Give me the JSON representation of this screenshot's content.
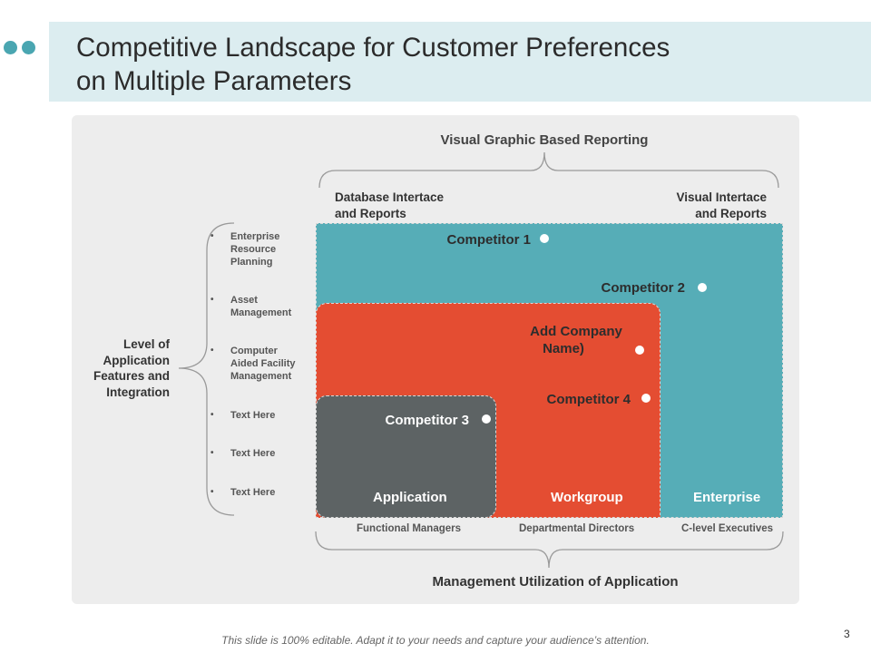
{
  "slide": {
    "title_lines": [
      "Competitive Landscape for Customer Preferences",
      "on Multiple Parameters"
    ],
    "footer_note": "This slide is 100% editable. Adapt it to your needs and capture your audience’s attention.",
    "page_number": "3",
    "colors": {
      "title_bar": "#dcedf0",
      "accent_dots": "#4aa6b1",
      "panel": "#ededed",
      "enterprise": "#56adb7",
      "workgroup": "#e44d32",
      "application": "#5d6364"
    }
  },
  "diagram": {
    "top_axis": {
      "label": "Visual Graphic Based Reporting",
      "left_end_lines": [
        "Database Intertace",
        "and Reports"
      ],
      "right_end_lines": [
        "Visual Intertace",
        "and Reports"
      ]
    },
    "left_axis": {
      "label_lines": [
        "Level of",
        "Application",
        "Features and",
        "Integration"
      ],
      "items": [
        {
          "lines": [
            "Enterprise",
            "Resource",
            "Planning"
          ]
        },
        {
          "lines": [
            "Asset",
            "Management"
          ]
        },
        {
          "lines": [
            "Computer",
            "Aided Facility",
            "Management"
          ]
        },
        {
          "lines": [
            "Text Here"
          ]
        },
        {
          "lines": [
            "Text Here"
          ]
        },
        {
          "lines": [
            "Text Here"
          ]
        }
      ]
    },
    "bottom_axis": {
      "label": "Management Utilization of Application",
      "roles": [
        "Functional  Managers",
        "Departmental Directors",
        "C-level Executives"
      ]
    },
    "regions": {
      "application": "Application",
      "workgroup": "Workgroup",
      "enterprise": "Enterprise"
    },
    "competitors": [
      {
        "lines": [
          "Competitor 1"
        ]
      },
      {
        "lines": [
          "Competitor 2"
        ]
      },
      {
        "lines": [
          "Add Company",
          "Name)"
        ]
      },
      {
        "lines": [
          "Competitor 4"
        ]
      },
      {
        "lines": [
          "Competitor 3"
        ]
      }
    ]
  }
}
